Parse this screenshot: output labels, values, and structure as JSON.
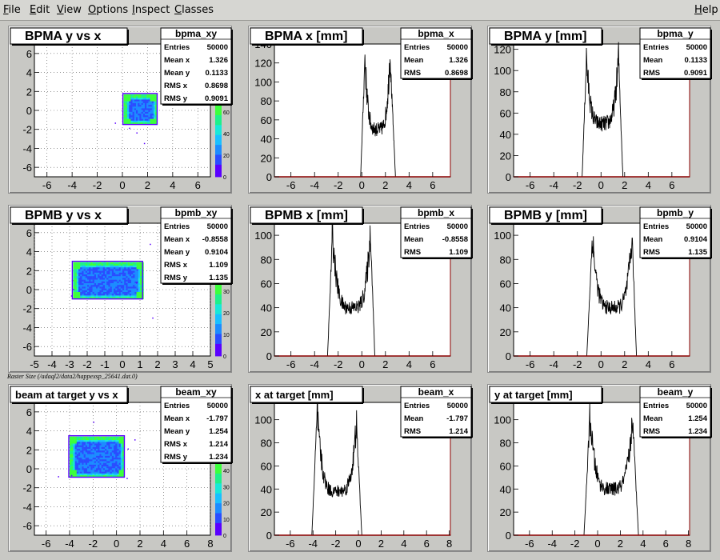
{
  "menu": {
    "items": [
      {
        "key": "F",
        "rest": "ile"
      },
      {
        "key": "E",
        "rest": "dit"
      },
      {
        "key": "V",
        "rest": "iew"
      },
      {
        "key": "O",
        "rest": "ptions"
      },
      {
        "key": "I",
        "rest": "nspect"
      },
      {
        "key": "C",
        "rest": "lasses"
      }
    ],
    "help": {
      "key": "H",
      "rest": "elp"
    }
  },
  "raster_label": "Raster Size (/adaql2/data2/happexsp_25641.dat.0)",
  "colors": {
    "frame": "#c8c8c4",
    "plot": "#ffffff",
    "axis": "#8b0000",
    "hist": "#000000"
  },
  "chart_data": [
    {
      "type": "heatmap",
      "title": "BPMA y vs x",
      "stats_name": "bpma_xy",
      "stats": [
        [
          "Entries",
          "50000"
        ],
        [
          "Mean x",
          "1.326"
        ],
        [
          "Mean y",
          "0.1133"
        ],
        [
          "RMS x",
          "0.8698"
        ],
        [
          "RMS y",
          "0.9091"
        ]
      ],
      "xlim": [
        -7,
        7
      ],
      "ylim": [
        -7,
        7
      ],
      "xticks": [
        -6,
        -4,
        -2,
        0,
        2,
        4,
        6
      ],
      "yticks": [
        -6,
        -4,
        -2,
        0,
        2,
        4,
        6
      ],
      "region": {
        "x": [
          0.1,
          2.7
        ],
        "y": [
          -1.4,
          1.7
        ]
      },
      "palette_ticks": [
        0,
        20,
        40,
        60
      ],
      "grid": true
    },
    {
      "type": "bar",
      "title": "BPMA x [mm]",
      "stats_name": "bpma_x",
      "stats": [
        [
          "Entries",
          "50000"
        ],
        [
          "Mean",
          "1.326"
        ],
        [
          "RMS",
          "0.8698"
        ]
      ],
      "xlim": [
        -7.4,
        7.5
      ],
      "ylim": [
        0,
        140
      ],
      "xticks": [
        -6,
        -4,
        -2,
        0,
        2,
        4,
        6
      ],
      "yticks": [
        0,
        20,
        40,
        60,
        80,
        100,
        120,
        140
      ],
      "profile": {
        "edges": [
          -0.1,
          0.25,
          2.4,
          2.85
        ],
        "peak_left": 130,
        "peak_right": 134,
        "middle": 50
      }
    },
    {
      "type": "bar",
      "title": "BPMA y [mm]",
      "stats_name": "bpma_y",
      "stats": [
        [
          "Entries",
          "50000"
        ],
        [
          "Mean",
          "0.1133"
        ],
        [
          "RMS",
          "0.9091"
        ]
      ],
      "xlim": [
        -7.4,
        7.5
      ],
      "ylim": [
        0,
        125
      ],
      "xticks": [
        -6,
        -4,
        -2,
        0,
        2,
        4,
        6
      ],
      "yticks": [
        0,
        20,
        40,
        60,
        80,
        100,
        120
      ],
      "profile": {
        "edges": [
          -1.6,
          -1.25,
          1.5,
          1.85
        ],
        "peak_left": 114,
        "peak_right": 117,
        "middle": 50
      }
    },
    {
      "type": "heatmap",
      "title": "BPMB y vs x",
      "stats_name": "bpmb_xy",
      "stats": [
        [
          "Entries",
          "50000"
        ],
        [
          "Mean x",
          "-0.8558"
        ],
        [
          "Mean y",
          "0.9104"
        ],
        [
          "RMS x",
          "1.109"
        ],
        [
          "RMS y",
          "1.135"
        ]
      ],
      "xlim": [
        -5,
        5
      ],
      "ylim": [
        -7,
        7
      ],
      "xticks": [
        -5,
        -4,
        -3,
        -2,
        -1,
        0,
        1,
        2,
        3,
        4,
        5
      ],
      "yticks": [
        -6,
        -4,
        -2,
        0,
        2,
        4,
        6
      ],
      "region": {
        "x": [
          -2.8,
          1.1
        ],
        "y": [
          -0.9,
          2.9
        ]
      },
      "palette_ticks": [
        0,
        10,
        20,
        30
      ],
      "grid": true
    },
    {
      "type": "bar",
      "title": "BPMB x [mm]",
      "stats_name": "bpmb_x",
      "stats": [
        [
          "Entries",
          "50000"
        ],
        [
          "Mean",
          "-0.8558"
        ],
        [
          "RMS",
          "1.109"
        ]
      ],
      "xlim": [
        -7.4,
        7.5
      ],
      "ylim": [
        0,
        110
      ],
      "xticks": [
        -6,
        -4,
        -2,
        0,
        2,
        4,
        6
      ],
      "yticks": [
        0,
        20,
        40,
        60,
        80,
        100
      ],
      "profile": {
        "edges": [
          -2.9,
          -2.5,
          0.75,
          1.1
        ],
        "peak_left": 105,
        "peak_right": 106,
        "middle": 40
      }
    },
    {
      "type": "bar",
      "title": "BPMB y [mm]",
      "stats_name": "bpmb_y",
      "stats": [
        [
          "Entries",
          "50000"
        ],
        [
          "Mean",
          "0.9104"
        ],
        [
          "RMS",
          "1.135"
        ]
      ],
      "xlim": [
        -7.4,
        7.5
      ],
      "ylim": [
        0,
        110
      ],
      "xticks": [
        -6,
        -4,
        -2,
        0,
        2,
        4,
        6
      ],
      "yticks": [
        0,
        20,
        40,
        60,
        80,
        100
      ],
      "profile": {
        "edges": [
          -1.2,
          -0.75,
          2.65,
          3.0
        ],
        "peak_left": 103,
        "peak_right": 102,
        "middle": 40
      }
    },
    {
      "type": "heatmap",
      "title": "beam at target y vs x",
      "stats_name": "beam_xy",
      "stats": [
        [
          "Entries",
          "50000"
        ],
        [
          "Mean x",
          "-1.797"
        ],
        [
          "Mean y",
          "1.254"
        ],
        [
          "RMS x",
          "1.214"
        ],
        [
          "RMS y",
          "1.234"
        ]
      ],
      "xlim": [
        -7,
        8
      ],
      "ylim": [
        -7,
        7
      ],
      "xticks": [
        -6,
        -4,
        -2,
        0,
        2,
        4,
        6,
        8
      ],
      "yticks": [
        -6,
        -4,
        -2,
        0,
        2,
        4,
        6
      ],
      "region": {
        "x": [
          -4.0,
          0.6
        ],
        "y": [
          -0.8,
          3.4
        ]
      },
      "palette_ticks": [
        0,
        10,
        20,
        30,
        40
      ],
      "grid": true
    },
    {
      "type": "bar",
      "title": "x at target [mm]",
      "stats_name": "beam_x",
      "stats": [
        [
          "Entries",
          "50000"
        ],
        [
          "Mean",
          "-1.797"
        ],
        [
          "RMS",
          "1.214"
        ]
      ],
      "xlim": [
        -7.4,
        8.1
      ],
      "ylim": [
        0,
        115
      ],
      "xticks": [
        -6,
        -4,
        -2,
        0,
        2,
        4,
        6,
        8
      ],
      "yticks": [
        0,
        20,
        40,
        60,
        80,
        100
      ],
      "profile": {
        "edges": [
          -4.1,
          -3.65,
          -0.15,
          0.3
        ],
        "peak_left": 110,
        "peak_right": 99,
        "middle": 38
      }
    },
    {
      "type": "bar",
      "title": "y at target [mm]",
      "stats_name": "beam_y",
      "stats": [
        [
          "Entries",
          "50000"
        ],
        [
          "Mean",
          "1.254"
        ],
        [
          "RMS",
          "1.234"
        ]
      ],
      "xlim": [
        -7.4,
        8.1
      ],
      "ylim": [
        0,
        115
      ],
      "xticks": [
        -6,
        -4,
        -2,
        0,
        2,
        4,
        6,
        8
      ],
      "yticks": [
        0,
        20,
        40,
        60,
        80,
        100
      ],
      "profile": {
        "edges": [
          -1.2,
          -0.7,
          3.1,
          3.6
        ],
        "peak_left": 106,
        "peak_right": 104,
        "middle": 40
      }
    }
  ]
}
